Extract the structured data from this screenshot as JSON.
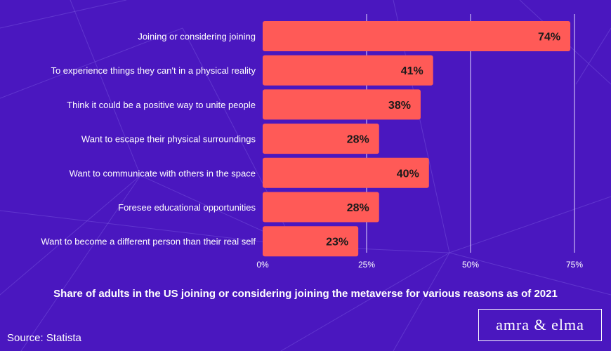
{
  "chart_data": {
    "type": "bar",
    "orientation": "horizontal",
    "categories": [
      "Joining or considering joining",
      "To experience things they can't in a physical reality",
      "Think it could be a positive way to unite people",
      "Want to escape their physical surroundings",
      "Want to communicate with others in the space",
      "Foresee educational opportunities",
      "Want to become a different person than their real self"
    ],
    "values": [
      74,
      41,
      38,
      28,
      40,
      28,
      23
    ],
    "value_labels": [
      "74%",
      "41%",
      "38%",
      "28%",
      "40%",
      "28%",
      "23%"
    ],
    "x_ticks": [
      0,
      25,
      50,
      75
    ],
    "x_tick_labels": [
      "0%",
      "25%",
      "50%",
      "75%"
    ],
    "xlim": [
      0,
      75
    ],
    "grid": "vertical",
    "title": "Share of adults in the US joining or considering joining the metaverse for various reasons as of 2021",
    "bar_color": "#ff5a57"
  },
  "source": "Source: Statista",
  "logo_text": "amra & elma",
  "colors": {
    "background": "#4a17bf",
    "bar": "#ff5a57",
    "text": "#ffffff"
  }
}
